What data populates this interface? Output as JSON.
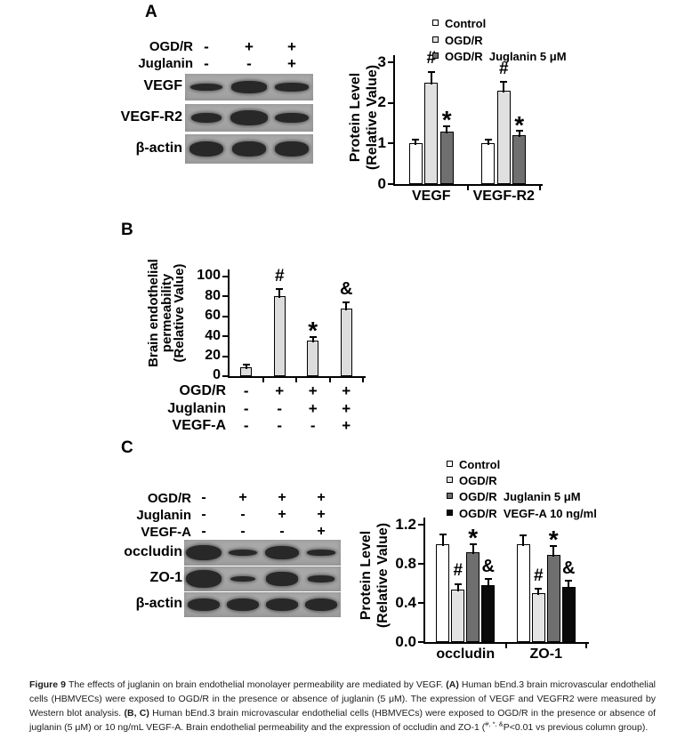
{
  "panels": {
    "a": {
      "label": "A",
      "blot": {
        "conditions": [
          {
            "label": "OGD/R",
            "symbols": [
              "-",
              "+",
              "+"
            ]
          },
          {
            "label": "Juglanin",
            "symbols": [
              "-",
              "-",
              "+"
            ]
          }
        ],
        "rows": [
          {
            "label": "VEGF",
            "bands": [
              [
                0.82,
                0.28
              ],
              [
                0.9,
                0.44
              ],
              [
                0.84,
                0.32
              ]
            ]
          },
          {
            "label": "VEGF-R2",
            "bands": [
              [
                0.78,
                0.36
              ],
              [
                0.95,
                0.54
              ],
              [
                0.85,
                0.38
              ]
            ]
          },
          {
            "label": "β-actin",
            "bands": [
              [
                0.88,
                0.52
              ],
              [
                0.85,
                0.5
              ],
              [
                0.85,
                0.5
              ]
            ]
          }
        ]
      }
    },
    "b": {
      "label": "B"
    },
    "c": {
      "label": "C",
      "blot": {
        "conditions": [
          {
            "label": "OGD/R",
            "symbols": [
              "-",
              "+",
              "+",
              "+"
            ]
          },
          {
            "label": "Juglanin",
            "symbols": [
              "-",
              "-",
              "+",
              "+"
            ]
          },
          {
            "label": "VEGF-A",
            "symbols": [
              "-",
              "-",
              "-",
              "+"
            ]
          }
        ],
        "rows": [
          {
            "label": "occludin",
            "bands": [
              [
                1.0,
                0.62
              ],
              [
                0.8,
                0.26
              ],
              [
                0.95,
                0.52
              ],
              [
                0.78,
                0.24
              ]
            ]
          },
          {
            "label": "ZO-1",
            "bands": [
              [
                1.0,
                0.72
              ],
              [
                0.7,
                0.24
              ],
              [
                0.88,
                0.54
              ],
              [
                0.75,
                0.26
              ]
            ]
          },
          {
            "label": "β-actin",
            "bands": [
              [
                0.9,
                0.5
              ],
              [
                0.9,
                0.5
              ],
              [
                0.9,
                0.5
              ],
              [
                0.9,
                0.5
              ]
            ]
          }
        ]
      }
    }
  },
  "chart_data": [
    {
      "id": "A",
      "type": "bar",
      "ylabel": "Protein Level (Relative Value)",
      "ylabel_lines": [
        "Protein Level",
        "(Relative Value)"
      ],
      "ylim": [
        0,
        3
      ],
      "yticks": [
        "0",
        "1",
        "2",
        "3"
      ],
      "categories": [
        "VEGF",
        "VEGF-R2"
      ],
      "legend_position": "top",
      "series": [
        {
          "name": "Control",
          "color": "#ffffff",
          "values": [
            1.0,
            1.0
          ],
          "errors": [
            0.08,
            0.08
          ],
          "sig": [
            "",
            ""
          ]
        },
        {
          "name": "OGD/R",
          "color": "#e0e0e0",
          "values": [
            2.5,
            2.3
          ],
          "errors": [
            0.25,
            0.2
          ],
          "sig": [
            "#",
            "#"
          ]
        },
        {
          "name": "OGD/R  Juglanin 5 μM",
          "color": "#6f6f6f",
          "values": [
            1.3,
            1.2
          ],
          "errors": [
            0.12,
            0.1
          ],
          "sig": [
            "*",
            "*"
          ]
        }
      ]
    },
    {
      "id": "B",
      "type": "bar",
      "ylabel": "Brain endothelial permeability (Relative Value)",
      "ylabel_lines": [
        "Brain endothelial",
        "permeability",
        "(Relative Value)"
      ],
      "ylim": [
        0,
        100
      ],
      "yticks": [
        "0",
        "20",
        "40",
        "60",
        "80",
        "100"
      ],
      "categories": [
        "",
        "",
        "",
        ""
      ],
      "series": [
        {
          "name": "",
          "color": "#dcdcdc",
          "values": [
            9,
            80,
            36,
            68
          ],
          "errors": [
            2,
            7,
            3,
            6
          ],
          "sig": [
            "",
            "#",
            "*",
            "&"
          ]
        }
      ],
      "conditions": [
        {
          "label": "OGD/R",
          "symbols": [
            "-",
            "+",
            "+",
            "+"
          ]
        },
        {
          "label": "Juglanin",
          "symbols": [
            "-",
            "-",
            "+",
            "+"
          ]
        },
        {
          "label": "VEGF-A",
          "symbols": [
            "-",
            "-",
            "-",
            "+"
          ]
        }
      ]
    },
    {
      "id": "C",
      "type": "bar",
      "ylabel": "Protein Level (Relative Value)",
      "ylabel_lines": [
        "Protein Level",
        "(Relative Value)"
      ],
      "ylim": [
        0,
        1.2
      ],
      "yticks": [
        "0.0",
        "0.4",
        "0.8",
        "1.2"
      ],
      "categories": [
        "occludin",
        "ZO-1"
      ],
      "legend_position": "top",
      "series": [
        {
          "name": "Control",
          "color": "#ffffff",
          "values": [
            1.0,
            1.0
          ],
          "errors": [
            0.1,
            0.09
          ],
          "sig": [
            "",
            ""
          ]
        },
        {
          "name": "OGD/R",
          "color": "#e3e3e3",
          "values": [
            0.54,
            0.5
          ],
          "errors": [
            0.05,
            0.04
          ],
          "sig": [
            "#",
            "#"
          ]
        },
        {
          "name": "OGD/R  Juglanin 5 μM",
          "color": "#6f6f6f",
          "values": [
            0.92,
            0.89
          ],
          "errors": [
            0.08,
            0.09
          ],
          "sig": [
            "*",
            "*"
          ]
        },
        {
          "name": "OGD/R  VEGF-A 10 ng/ml",
          "color": "#0a0a0a",
          "values": [
            0.58,
            0.56
          ],
          "errors": [
            0.06,
            0.06
          ],
          "sig": [
            "&",
            "&"
          ]
        }
      ]
    }
  ],
  "caption": {
    "segments": [
      {
        "text": "Figure 9 ",
        "bold": true
      },
      {
        "text": "The effects of juglanin on brain endothelial monolayer permeability are mediated by VEGF. ",
        "bold": false
      },
      {
        "text": "(A) ",
        "bold": true
      },
      {
        "text": "Human bEnd.3 brain microvascular endothelial cells (HBMVECs) were exposed to OGD/R in the presence or absence of juglanin (5 μM). The expression of VEGF and VEGFR2 were measured by Western blot analysis. ",
        "bold": false
      },
      {
        "text": "(B, C) ",
        "bold": true
      },
      {
        "text": "Human bEnd.3 brain microvascular endothelial cells (HBMVECs) were exposed to OGD/R in the presence or absence of juglanin (5 μM) or 10 ng/mL VEGF-A. Brain endothelial permeability and the expression of occludin and ZO-1 (",
        "bold": false
      },
      {
        "text": "#, *, &",
        "bold": false,
        "sup": true
      },
      {
        "text": "P<0.01 vs previous column group).",
        "bold": false
      }
    ]
  },
  "colors": {
    "bar_white": "#ffffff",
    "bar_light_gray": "#e0e0e0",
    "bar_dark_gray": "#6f6f6f",
    "bar_black": "#0a0a0a",
    "gel_background": "#a6a6a6",
    "band": "#282828",
    "axis": "#000000"
  }
}
